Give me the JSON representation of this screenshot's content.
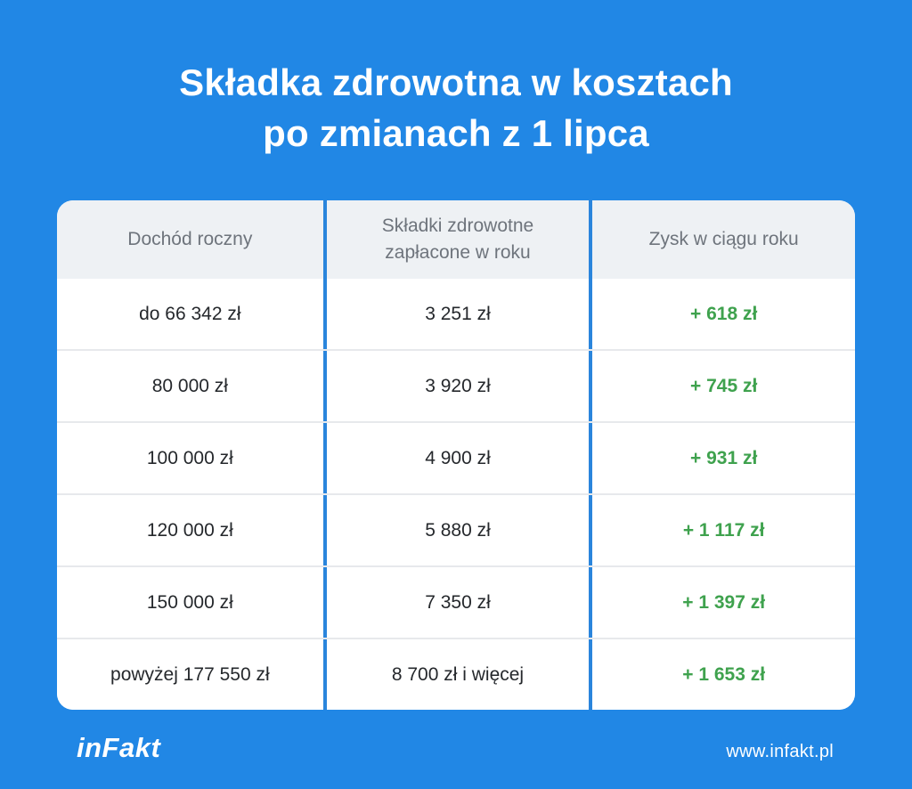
{
  "title": {
    "line1": "Składka zdrowotna w kosztach",
    "line2": "po zmianach z 1 lipca"
  },
  "chart_data": {
    "type": "table",
    "title": "Składka zdrowotna w kosztach po zmianach z 1 lipca",
    "columns": [
      "Dochód roczny",
      "Składki zdrowotne zapłacone w roku",
      "Zysk w ciągu roku"
    ],
    "rows": [
      [
        "do 66 342 zł",
        "3 251 zł",
        "+ 618 zł"
      ],
      [
        "80 000 zł",
        "3 920 zł",
        "+ 745 zł"
      ],
      [
        "100 000 zł",
        "4 900 zł",
        "+ 931 zł"
      ],
      [
        "120 000 zł",
        "5 880 zł",
        "+ 1 117 zł"
      ],
      [
        "150 000 zł",
        "7 350 zł",
        "+ 1 397 zł"
      ],
      [
        "powyżej 177 550 zł",
        "8 700 zł i więcej",
        "+ 1 653 zł"
      ]
    ]
  },
  "footer": {
    "logo_text": "inFakt",
    "website": "www.infakt.pl"
  },
  "colors": {
    "background_blue": "#2187e5",
    "header_bg": "#eef1f4",
    "header_text": "#6e747c",
    "cell_text": "#25282c",
    "positive_green": "#3fa24e",
    "divider_blue": "#2a85dc",
    "divider_gray": "#e7e9ec",
    "title_white": "#ffffff"
  }
}
